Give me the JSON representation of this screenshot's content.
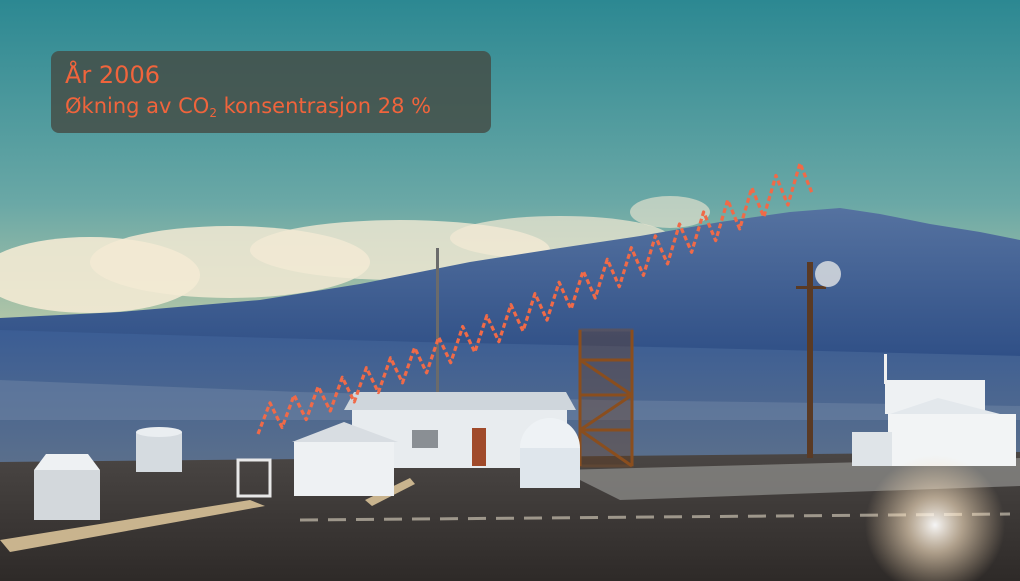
{
  "caption": {
    "line1": "År 2006",
    "line2_before": "Økning av CO",
    "line2_subscript": "2",
    "line2_after": " konsentrasjon 28 %"
  },
  "colors": {
    "caption_text": "#f0643c",
    "caption_box": "#444c44",
    "co2_curve": "#f06a48",
    "sky_top": "#2e8c96",
    "sky_horizon": "#e8dca8",
    "mountain": "#3f6190"
  },
  "co2_curve": {
    "cycles": 23,
    "note_visible": false
  }
}
